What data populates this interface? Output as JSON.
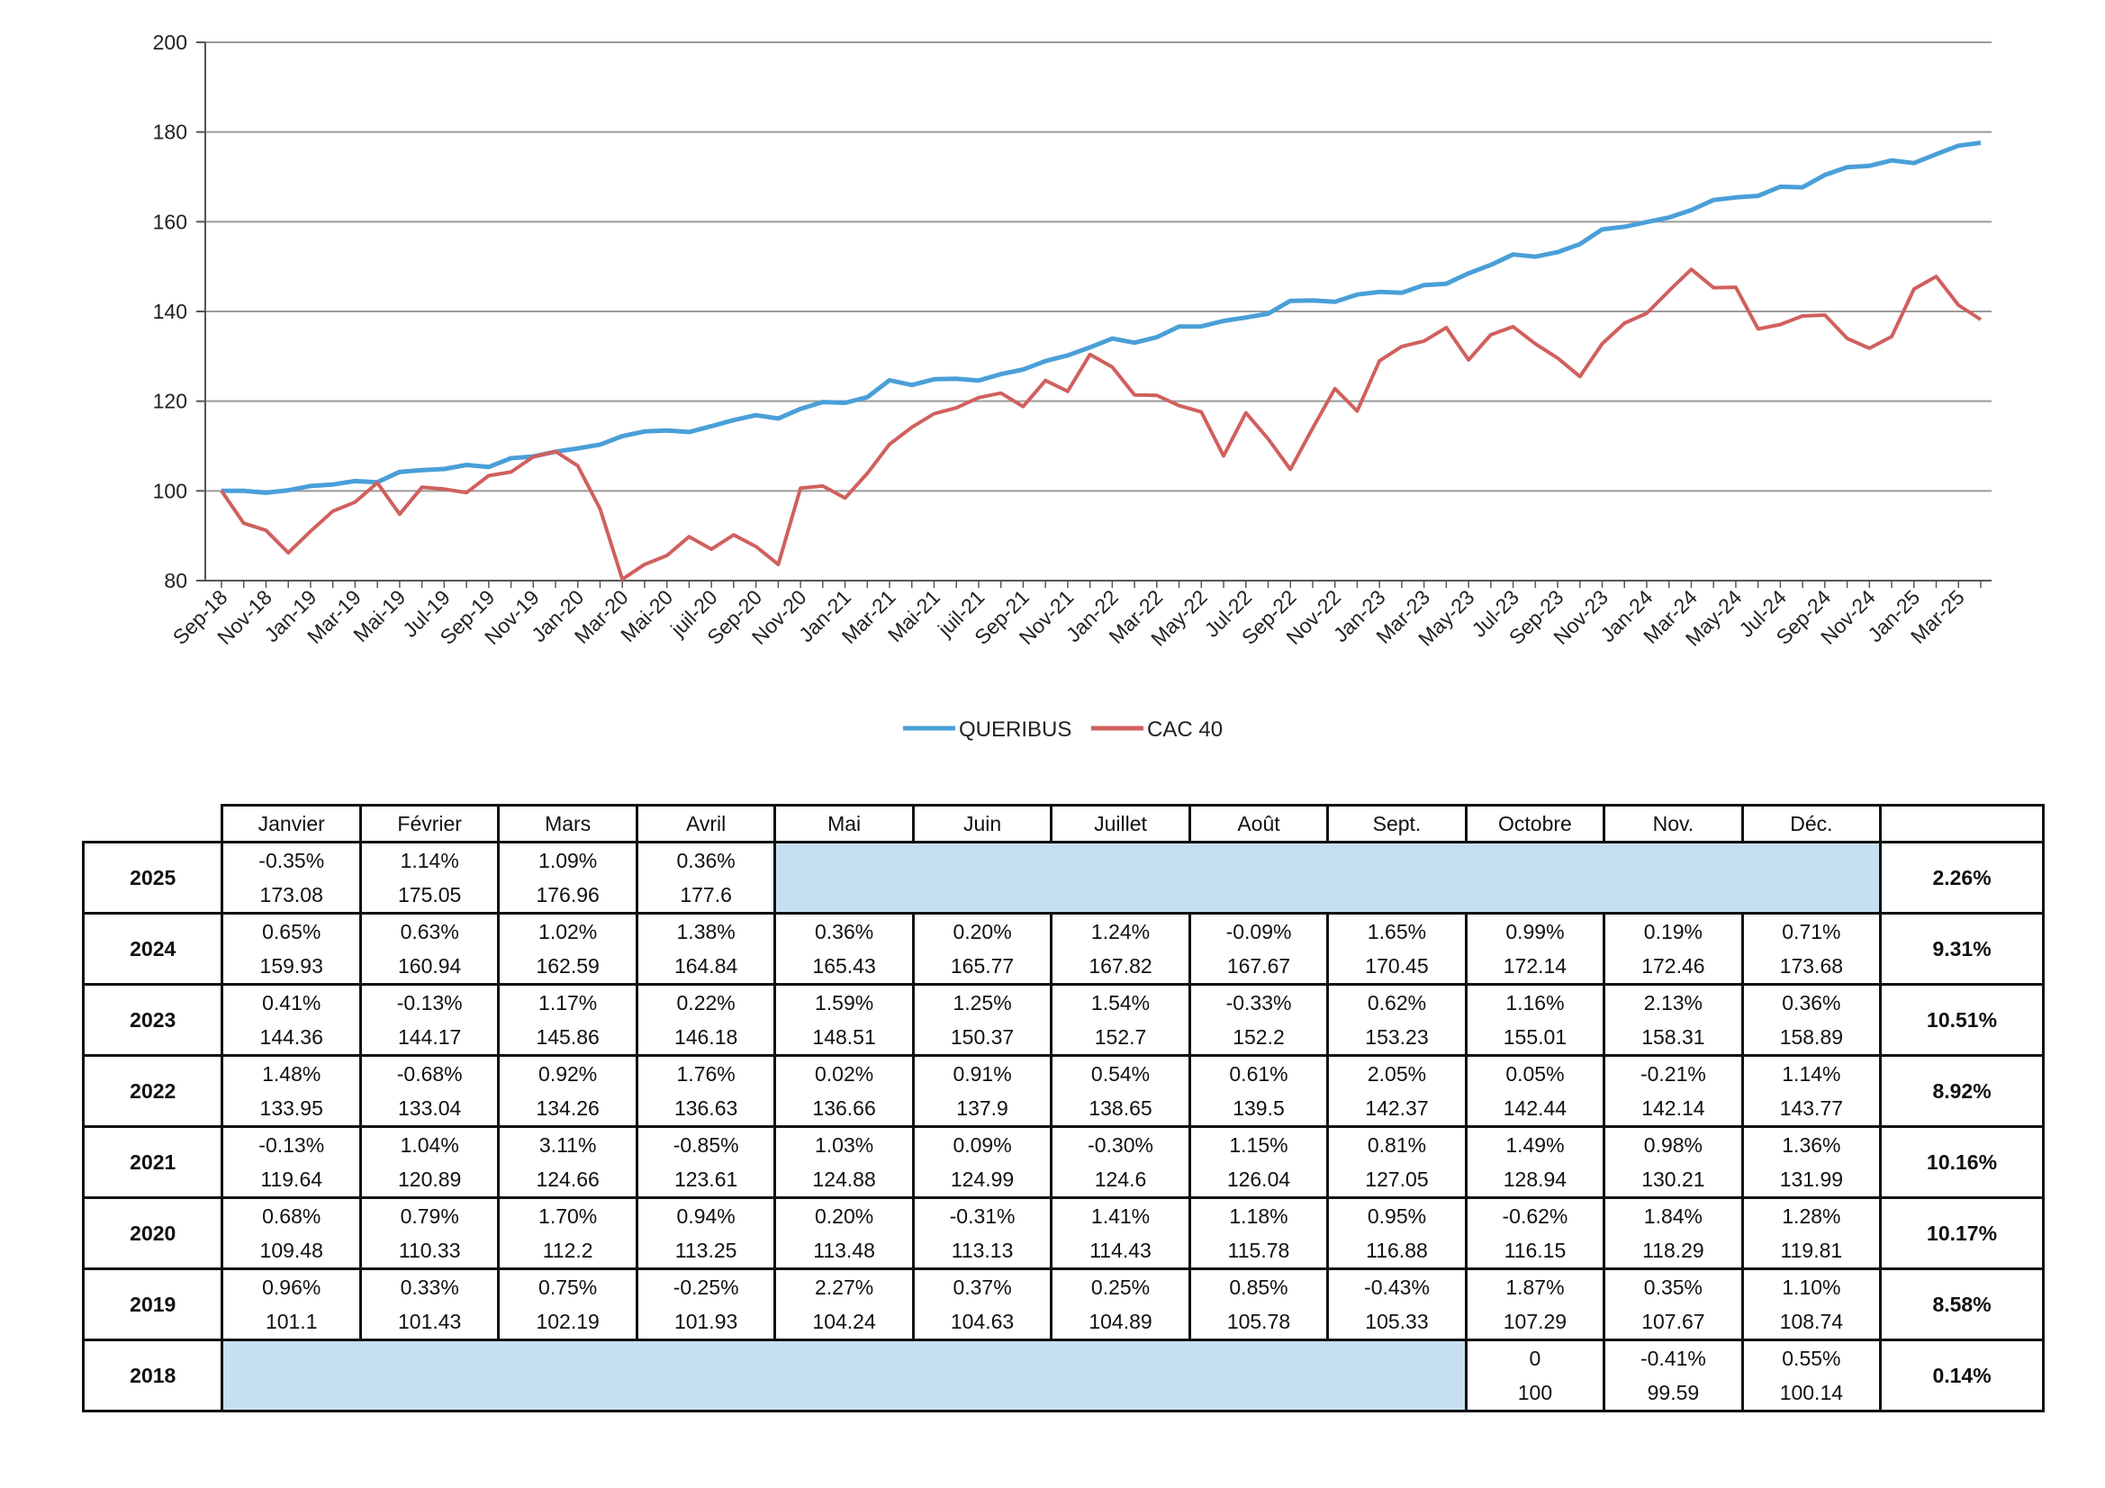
{
  "chart_data": {
    "type": "line",
    "ylim": [
      80,
      200
    ],
    "yticks": [
      80,
      100,
      120,
      140,
      160,
      180,
      200
    ],
    "grid": true,
    "legend_position": "bottom",
    "xtick_labels": [
      "Sep-18",
      "Nov-18",
      "Jan-19",
      "Mar-19",
      "Mai-19",
      "Jul-19",
      "Sep-19",
      "Nov-19",
      "Jan-20",
      "Mar-20",
      "Mai-20",
      "juil-20",
      "Sep-20",
      "Nov-20",
      "Jan-21",
      "Mar-21",
      "Mai-21",
      "juil-21",
      "Sep-21",
      "Nov-21",
      "Jan-22",
      "Mar-22",
      "May-22",
      "Jul-22",
      "Sep-22",
      "Nov-22",
      "Jan-23",
      "Mar-23",
      "May-23",
      "Jul-23",
      "Sep-23",
      "Nov-23",
      "Jan-24",
      "Mar-24",
      "May-24",
      "Jul-24",
      "Sep-24",
      "Nov-24",
      "Jan-25",
      "Mar-25"
    ],
    "x_count": 80,
    "series": [
      {
        "name": "QUERIBUS",
        "color": "#4a9fd8",
        "values": [
          100,
          100,
          99.59,
          100.14,
          101.1,
          101.43,
          102.19,
          101.93,
          104.24,
          104.63,
          104.89,
          105.78,
          105.33,
          107.29,
          107.67,
          108.74,
          109.48,
          110.33,
          112.2,
          113.25,
          113.48,
          113.13,
          114.43,
          115.78,
          116.88,
          116.15,
          118.29,
          119.81,
          119.64,
          120.89,
          124.66,
          123.61,
          124.88,
          124.99,
          124.6,
          126.04,
          127.05,
          128.94,
          130.21,
          131.99,
          133.95,
          133.04,
          134.26,
          136.63,
          136.66,
          137.9,
          138.65,
          139.5,
          142.37,
          142.44,
          142.14,
          143.77,
          144.36,
          144.17,
          145.86,
          146.18,
          148.51,
          150.37,
          152.7,
          152.2,
          153.23,
          155.01,
          158.31,
          158.89,
          159.93,
          160.94,
          162.59,
          164.84,
          165.43,
          165.77,
          167.82,
          167.67,
          170.45,
          172.14,
          172.46,
          173.68,
          173.08,
          175.05,
          176.96,
          177.6
        ]
      },
      {
        "name": "CAC 40",
        "color": "#d0605e",
        "values": [
          100,
          92.8,
          91.2,
          86.2,
          91,
          95.5,
          97.5,
          101.8,
          94.8,
          100.8,
          100.4,
          99.6,
          103.4,
          104.2,
          107.6,
          108.8,
          105.6,
          96,
          80.3,
          83.6,
          85.6,
          89.8,
          87,
          90.2,
          87.6,
          83.6,
          100.6,
          101.1,
          98.4,
          103.9,
          110.4,
          114.2,
          117.2,
          118.5,
          120.8,
          121.8,
          118.8,
          124.6,
          122.2,
          130.4,
          127.6,
          121.4,
          121.3,
          119,
          117.6,
          107.8,
          117.4,
          111.6,
          104.8,
          114,
          122.8,
          117.8,
          129,
          132.2,
          133.4,
          136.4,
          129.2,
          134.8,
          136.6,
          132.8,
          129.6,
          125.5,
          132.8,
          137.4,
          139.6,
          144.6,
          149.4,
          145.3,
          145.4,
          136.1,
          137.1,
          139,
          139.2,
          134,
          131.8,
          134.4,
          145,
          147.8,
          141.4,
          138.2
        ]
      }
    ]
  },
  "table": {
    "months": [
      "Janvier",
      "Février",
      "Mars",
      "Avril",
      "Mai",
      "Juin",
      "Juillet",
      "Août",
      "Sept.",
      "Octobre",
      "Nov.",
      "Déc."
    ],
    "rows": [
      {
        "year": "2025",
        "start": 0,
        "cells": [
          [
            "-0.35%",
            "173.08"
          ],
          [
            "1.14%",
            "175.05"
          ],
          [
            "1.09%",
            "176.96"
          ],
          [
            "0.36%",
            "177.6"
          ]
        ],
        "blank_after": 8,
        "total": "2.26%"
      },
      {
        "year": "2024",
        "start": 0,
        "cells": [
          [
            "0.65%",
            "159.93"
          ],
          [
            "0.63%",
            "160.94"
          ],
          [
            "1.02%",
            "162.59"
          ],
          [
            "1.38%",
            "164.84"
          ],
          [
            "0.36%",
            "165.43"
          ],
          [
            "0.20%",
            "165.77"
          ],
          [
            "1.24%",
            "167.82"
          ],
          [
            "-0.09%",
            "167.67"
          ],
          [
            "1.65%",
            "170.45"
          ],
          [
            "0.99%",
            "172.14"
          ],
          [
            "0.19%",
            "172.46"
          ],
          [
            "0.71%",
            "173.68"
          ]
        ],
        "blank_after": 0,
        "total": "9.31%"
      },
      {
        "year": "2023",
        "start": 0,
        "cells": [
          [
            "0.41%",
            "144.36"
          ],
          [
            "-0.13%",
            "144.17"
          ],
          [
            "1.17%",
            "145.86"
          ],
          [
            "0.22%",
            "146.18"
          ],
          [
            "1.59%",
            "148.51"
          ],
          [
            "1.25%",
            "150.37"
          ],
          [
            "1.54%",
            "152.7"
          ],
          [
            "-0.33%",
            "152.2"
          ],
          [
            "0.62%",
            "153.23"
          ],
          [
            "1.16%",
            "155.01"
          ],
          [
            "2.13%",
            "158.31"
          ],
          [
            "0.36%",
            "158.89"
          ]
        ],
        "blank_after": 0,
        "total": "10.51%"
      },
      {
        "year": "2022",
        "start": 0,
        "cells": [
          [
            "1.48%",
            "133.95"
          ],
          [
            "-0.68%",
            "133.04"
          ],
          [
            "0.92%",
            "134.26"
          ],
          [
            "1.76%",
            "136.63"
          ],
          [
            "0.02%",
            "136.66"
          ],
          [
            "0.91%",
            "137.9"
          ],
          [
            "0.54%",
            "138.65"
          ],
          [
            "0.61%",
            "139.5"
          ],
          [
            "2.05%",
            "142.37"
          ],
          [
            "0.05%",
            "142.44"
          ],
          [
            "-0.21%",
            "142.14"
          ],
          [
            "1.14%",
            "143.77"
          ]
        ],
        "blank_after": 0,
        "total": "8.92%"
      },
      {
        "year": "2021",
        "start": 0,
        "cells": [
          [
            "-0.13%",
            "119.64"
          ],
          [
            "1.04%",
            "120.89"
          ],
          [
            "3.11%",
            "124.66"
          ],
          [
            "-0.85%",
            "123.61"
          ],
          [
            "1.03%",
            "124.88"
          ],
          [
            "0.09%",
            "124.99"
          ],
          [
            "-0.30%",
            "124.6"
          ],
          [
            "1.15%",
            "126.04"
          ],
          [
            "0.81%",
            "127.05"
          ],
          [
            "1.49%",
            "128.94"
          ],
          [
            "0.98%",
            "130.21"
          ],
          [
            "1.36%",
            "131.99"
          ]
        ],
        "blank_after": 0,
        "total": "10.16%"
      },
      {
        "year": "2020",
        "start": 0,
        "cells": [
          [
            "0.68%",
            "109.48"
          ],
          [
            "0.79%",
            "110.33"
          ],
          [
            "1.70%",
            "112.2"
          ],
          [
            "0.94%",
            "113.25"
          ],
          [
            "0.20%",
            "113.48"
          ],
          [
            "-0.31%",
            "113.13"
          ],
          [
            "1.41%",
            "114.43"
          ],
          [
            "1.18%",
            "115.78"
          ],
          [
            "0.95%",
            "116.88"
          ],
          [
            "-0.62%",
            "116.15"
          ],
          [
            "1.84%",
            "118.29"
          ],
          [
            "1.28%",
            "119.81"
          ]
        ],
        "blank_after": 0,
        "total": "10.17%"
      },
      {
        "year": "2019",
        "start": 0,
        "cells": [
          [
            "0.96%",
            "101.1"
          ],
          [
            "0.33%",
            "101.43"
          ],
          [
            "0.75%",
            "102.19"
          ],
          [
            "-0.25%",
            "101.93"
          ],
          [
            "2.27%",
            "104.24"
          ],
          [
            "0.37%",
            "104.63"
          ],
          [
            "0.25%",
            "104.89"
          ],
          [
            "0.85%",
            "105.78"
          ],
          [
            "-0.43%",
            "105.33"
          ],
          [
            "1.87%",
            "107.29"
          ],
          [
            "0.35%",
            "107.67"
          ],
          [
            "1.10%",
            "108.74"
          ]
        ],
        "blank_after": 0,
        "total": "8.58%"
      },
      {
        "year": "2018",
        "start": 9,
        "cells": [
          [
            "0",
            "100"
          ],
          [
            "-0.41%",
            "99.59"
          ],
          [
            "0.55%",
            "100.14"
          ]
        ],
        "blank_after": 0,
        "total": "0.14%"
      }
    ]
  }
}
